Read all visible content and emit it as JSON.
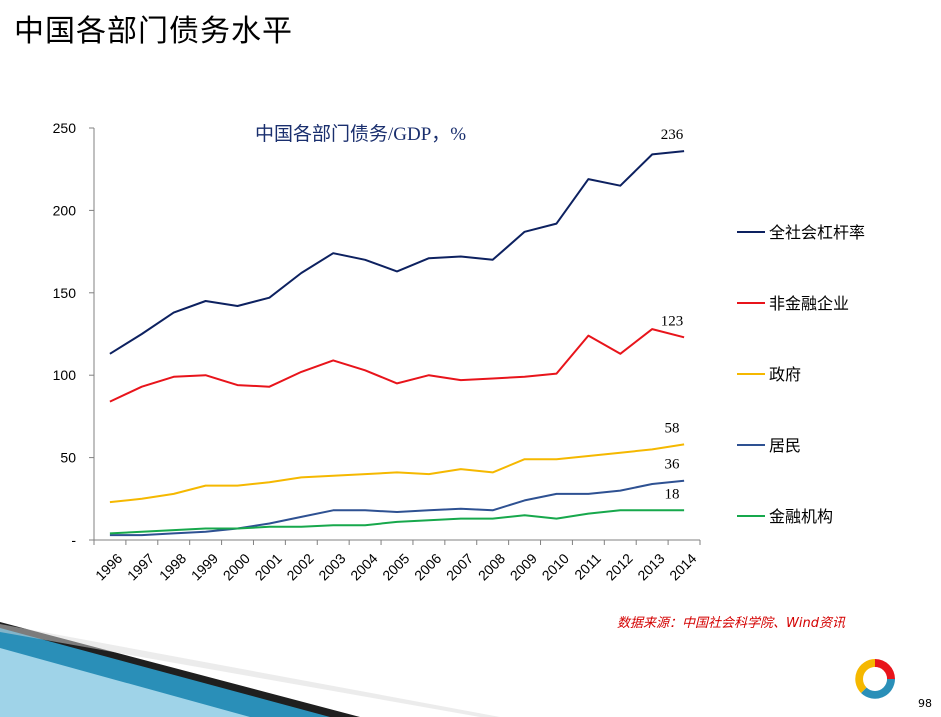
{
  "slide": {
    "title": "中国各部门债务水平",
    "source": "数据来源：中国社会科学院、Wind资讯",
    "page_number": "98"
  },
  "chart_data": {
    "type": "line",
    "title": "中国各部门债务/GDP，%",
    "xlabel": "",
    "ylabel": "",
    "x": [
      "1996",
      "1997",
      "1998",
      "1999",
      "2000",
      "2001",
      "2002",
      "2003",
      "2004",
      "2005",
      "2006",
      "2007",
      "2008",
      "2009",
      "2010",
      "2011",
      "2012",
      "2013",
      "2014"
    ],
    "ylim": [
      0,
      250
    ],
    "yticks": [
      {
        "value": 0,
        "label": "-"
      },
      {
        "value": 50,
        "label": "50"
      },
      {
        "value": 100,
        "label": "100"
      },
      {
        "value": 150,
        "label": "150"
      },
      {
        "value": 200,
        "label": "200"
      },
      {
        "value": 250,
        "label": "250"
      }
    ],
    "grid": false,
    "legend_position": "right",
    "series": [
      {
        "name": "全社会杠杆率",
        "color": "#0d2160",
        "values": [
          113,
          125,
          138,
          145,
          142,
          147,
          162,
          174,
          170,
          163,
          171,
          172,
          170,
          187,
          192,
          219,
          215,
          234,
          236
        ],
        "end_label": "236"
      },
      {
        "name": "非金融企业",
        "color": "#e8141b",
        "values": [
          84,
          93,
          99,
          100,
          94,
          93,
          102,
          109,
          103,
          95,
          100,
          97,
          98,
          99,
          101,
          124,
          113,
          128,
          123
        ],
        "end_label": "123"
      },
      {
        "name": "政府",
        "color": "#f5b800",
        "values": [
          23,
          25,
          28,
          33,
          33,
          35,
          38,
          39,
          40,
          41,
          40,
          43,
          41,
          49,
          49,
          51,
          53,
          55,
          58
        ],
        "end_label": "58"
      },
      {
        "name": "居民",
        "color": "#2e5192",
        "values": [
          3,
          3,
          4,
          5,
          7,
          10,
          14,
          18,
          18,
          17,
          18,
          19,
          18,
          24,
          28,
          28,
          30,
          34,
          36
        ],
        "end_label": "36"
      },
      {
        "name": "金融机构",
        "color": "#17a84c",
        "values": [
          4,
          5,
          6,
          7,
          7,
          8,
          8,
          9,
          9,
          11,
          12,
          13,
          13,
          15,
          13,
          16,
          18,
          18,
          18
        ],
        "end_label": "18"
      }
    ]
  }
}
